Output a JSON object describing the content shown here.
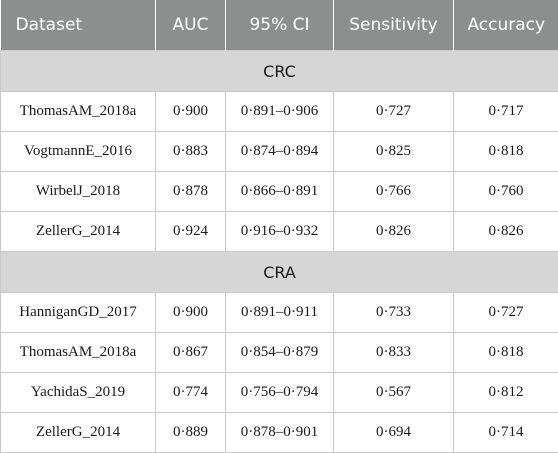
{
  "header": [
    "Dataset",
    "AUC",
    "95% CI",
    "Sensitivity",
    "Accuracy"
  ],
  "sections": [
    {
      "label": "CRC",
      "rows": [
        [
          "ThomasAM_2018a",
          "0·900",
          "0·891–0·906",
          "0·727",
          "0·717"
        ],
        [
          "VogtmannE_2016",
          "0·883",
          "0·874–0·894",
          "0·825",
          "0·818"
        ],
        [
          "WirbelJ_2018",
          "0·878",
          "0·866–0·891",
          "0·766",
          "0·760"
        ],
        [
          "ZellerG_2014",
          "0·924",
          "0·916–0·932",
          "0·826",
          "0·826"
        ]
      ]
    },
    {
      "label": "CRA",
      "rows": [
        [
          "HanniganGD_2017",
          "0·900",
          "0·891–0·911",
          "0·733",
          "0·727"
        ],
        [
          "ThomasAM_2018a",
          "0·867",
          "0·854–0·879",
          "0·833",
          "0·818"
        ],
        [
          "YachidaS_2019",
          "0·774",
          "0·756–0·794",
          "0·567",
          "0·812"
        ],
        [
          "ZellerG_2014",
          "0·889",
          "0·878–0·901",
          "0·694",
          "0·714"
        ]
      ]
    }
  ]
}
